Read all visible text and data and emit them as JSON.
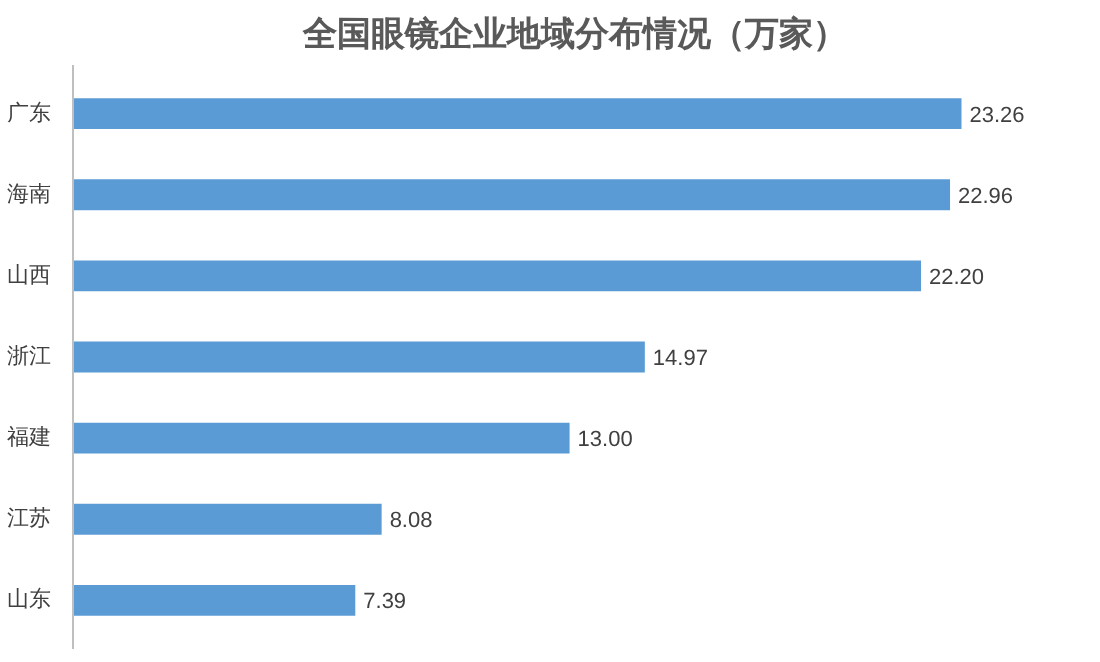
{
  "chart_data": {
    "type": "bar",
    "orientation": "horizontal",
    "title": "全国眼镜企业地域分布情况（万家）",
    "categories": [
      "广东",
      "海南",
      "山西",
      "浙江",
      "福建",
      "江苏",
      "山东"
    ],
    "values": [
      23.26,
      22.96,
      22.2,
      14.97,
      13.0,
      8.08,
      7.39
    ],
    "value_labels": [
      "23.26",
      "22.96",
      "22.20",
      "14.97",
      "13.00",
      "8.08",
      "7.39"
    ],
    "color": "#5b9bd5",
    "grid": false
  }
}
